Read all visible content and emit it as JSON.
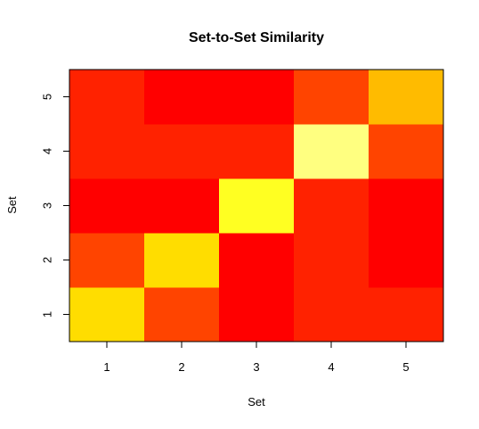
{
  "chart_data": {
    "type": "heatmap",
    "title": "Set-to-Set Similarity",
    "xlabel": "Set",
    "ylabel": "Set",
    "x": [
      "1",
      "2",
      "3",
      "4",
      "5"
    ],
    "y": [
      "1",
      "2",
      "3",
      "4",
      "5"
    ],
    "cells": [
      {
        "x": "1",
        "y": "1",
        "color": "#FFDD00"
      },
      {
        "x": "2",
        "y": "1",
        "color": "#FF4400"
      },
      {
        "x": "3",
        "y": "1",
        "color": "#FF0000"
      },
      {
        "x": "4",
        "y": "1",
        "color": "#FF2200"
      },
      {
        "x": "5",
        "y": "1",
        "color": "#FF2200"
      },
      {
        "x": "1",
        "y": "2",
        "color": "#FF4400"
      },
      {
        "x": "2",
        "y": "2",
        "color": "#FFDD00"
      },
      {
        "x": "3",
        "y": "2",
        "color": "#FF0000"
      },
      {
        "x": "4",
        "y": "2",
        "color": "#FF2200"
      },
      {
        "x": "5",
        "y": "2",
        "color": "#FF0000"
      },
      {
        "x": "1",
        "y": "3",
        "color": "#FF0000"
      },
      {
        "x": "2",
        "y": "3",
        "color": "#FF0000"
      },
      {
        "x": "3",
        "y": "3",
        "color": "#FFFF22"
      },
      {
        "x": "4",
        "y": "3",
        "color": "#FF2200"
      },
      {
        "x": "5",
        "y": "3",
        "color": "#FF0000"
      },
      {
        "x": "1",
        "y": "4",
        "color": "#FF2200"
      },
      {
        "x": "2",
        "y": "4",
        "color": "#FF2200"
      },
      {
        "x": "3",
        "y": "4",
        "color": "#FF2200"
      },
      {
        "x": "4",
        "y": "4",
        "color": "#FFFF80"
      },
      {
        "x": "5",
        "y": "4",
        "color": "#FF4400"
      },
      {
        "x": "1",
        "y": "5",
        "color": "#FF2200"
      },
      {
        "x": "2",
        "y": "5",
        "color": "#FF0000"
      },
      {
        "x": "3",
        "y": "5",
        "color": "#FF0000"
      },
      {
        "x": "4",
        "y": "5",
        "color": "#FF4400"
      },
      {
        "x": "5",
        "y": "5",
        "color": "#FFBB00"
      }
    ],
    "legend": "none",
    "grid": false
  }
}
